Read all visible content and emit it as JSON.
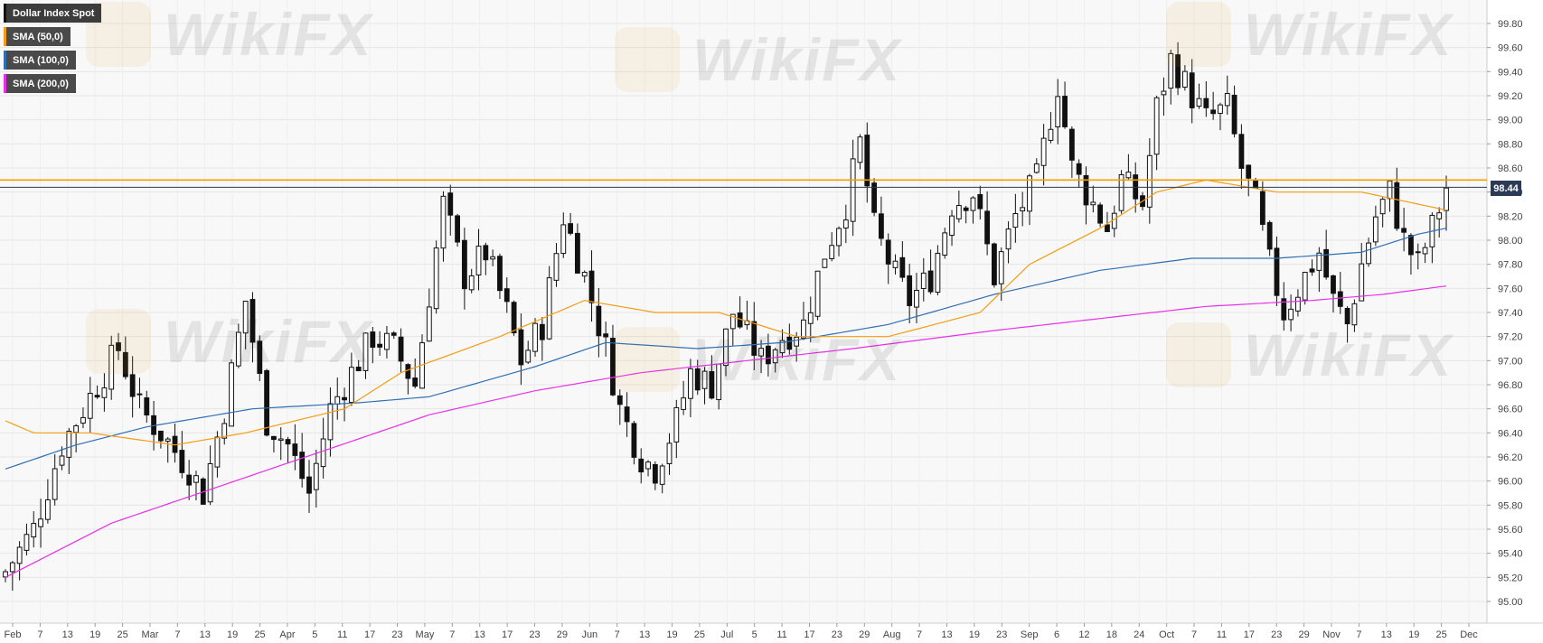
{
  "chart_data": {
    "type": "candlestick",
    "title": "Dollar Index Spot",
    "series": [
      {
        "name": "SMA (50,0)",
        "color": "#f39c12"
      },
      {
        "name": "SMA (100,0)",
        "color": "#2e6eb5"
      },
      {
        "name": "SMA (200,0)",
        "color": "#e830e8"
      }
    ],
    "y_ticks": [
      "99.80",
      "99.60",
      "99.40",
      "99.20",
      "99.00",
      "98.80",
      "98.60",
      "98.40",
      "98.20",
      "98.00",
      "97.80",
      "97.60",
      "97.40",
      "97.20",
      "97.00",
      "96.80",
      "96.60",
      "96.40",
      "96.20",
      "96.00",
      "95.80",
      "95.60",
      "95.40",
      "95.20",
      "95.00"
    ],
    "ylim": [
      94.95,
      99.95
    ],
    "x_ticks": [
      "Feb",
      "7",
      "13",
      "19",
      "25",
      "Mar",
      "7",
      "13",
      "19",
      "25",
      "Apr",
      "5",
      "11",
      "17",
      "23",
      "May",
      "7",
      "13",
      "17",
      "23",
      "29",
      "Jun",
      "7",
      "13",
      "19",
      "25",
      "Jul",
      "5",
      "11",
      "17",
      "23",
      "29",
      "Aug",
      "7",
      "13",
      "19",
      "23",
      "Sep",
      "6",
      "12",
      "18",
      "24",
      "Oct",
      "7",
      "11",
      "17",
      "23",
      "29",
      "Nov",
      "7",
      "13",
      "19",
      "25",
      "Dec"
    ],
    "horizontal_level": 98.5,
    "last_price": "98.44",
    "last_value": 98.44,
    "close_path": [
      [
        0,
        95.25
      ],
      [
        4,
        95.6
      ],
      [
        8,
        96.3
      ],
      [
        12,
        96.7
      ],
      [
        16,
        97.1
      ],
      [
        19,
        96.6
      ],
      [
        22,
        96.4
      ],
      [
        26,
        96.1
      ],
      [
        28,
        95.9
      ],
      [
        31,
        96.6
      ],
      [
        34,
        97.5
      ],
      [
        37,
        96.5
      ],
      [
        40,
        96.3
      ],
      [
        43,
        95.9
      ],
      [
        46,
        96.6
      ],
      [
        49,
        96.9
      ],
      [
        52,
        97.2
      ],
      [
        55,
        97.1
      ],
      [
        58,
        96.8
      ],
      [
        62,
        98.3
      ],
      [
        65,
        97.7
      ],
      [
        68,
        97.9
      ],
      [
        71,
        97.4
      ],
      [
        73,
        97.0
      ],
      [
        76,
        97.3
      ],
      [
        79,
        98.2
      ],
      [
        82,
        97.7
      ],
      [
        85,
        97.1
      ],
      [
        87,
        96.6
      ],
      [
        90,
        96.2
      ],
      [
        92,
        96.1
      ],
      [
        95,
        96.5
      ],
      [
        97,
        96.9
      ],
      [
        100,
        96.8
      ],
      [
        103,
        97.4
      ],
      [
        107,
        97.0
      ],
      [
        110,
        97.2
      ],
      [
        113,
        97.3
      ],
      [
        116,
        97.9
      ],
      [
        119,
        98.3
      ],
      [
        121,
        98.8
      ],
      [
        123,
        98.1
      ],
      [
        126,
        97.7
      ],
      [
        128,
        97.5
      ],
      [
        131,
        97.7
      ],
      [
        134,
        98.3
      ],
      [
        137,
        98.4
      ],
      [
        140,
        97.7
      ],
      [
        143,
        98.2
      ],
      [
        146,
        98.5
      ],
      [
        149,
        99.3
      ],
      [
        151,
        98.6
      ],
      [
        153,
        98.4
      ],
      [
        156,
        98.1
      ],
      [
        158,
        98.5
      ],
      [
        161,
        98.3
      ],
      [
        163,
        99.1
      ],
      [
        165,
        99.5
      ],
      [
        168,
        99.2
      ],
      [
        170,
        99.0
      ],
      [
        173,
        99.1
      ],
      [
        175,
        98.6
      ],
      [
        177,
        98.3
      ],
      [
        179,
        97.8
      ],
      [
        181,
        97.4
      ],
      [
        184,
        97.7
      ],
      [
        186,
        97.9
      ],
      [
        188,
        97.5
      ],
      [
        190,
        97.3
      ],
      [
        192,
        97.8
      ],
      [
        194,
        98.2
      ],
      [
        196,
        98.4
      ],
      [
        198,
        98.0
      ],
      [
        200,
        97.8
      ],
      [
        202,
        98.1
      ],
      [
        204,
        98.44
      ]
    ],
    "sma50": [
      [
        0,
        96.5
      ],
      [
        4,
        96.4
      ],
      [
        12,
        96.4
      ],
      [
        24,
        96.3
      ],
      [
        34,
        96.4
      ],
      [
        48,
        96.6
      ],
      [
        56,
        96.9
      ],
      [
        70,
        97.2
      ],
      [
        82,
        97.5
      ],
      [
        92,
        97.4
      ],
      [
        101,
        97.4
      ],
      [
        112,
        97.2
      ],
      [
        125,
        97.2
      ],
      [
        138,
        97.4
      ],
      [
        145,
        97.8
      ],
      [
        155,
        98.1
      ],
      [
        163,
        98.4
      ],
      [
        170,
        98.5
      ],
      [
        180,
        98.4
      ],
      [
        192,
        98.4
      ],
      [
        200,
        98.3
      ],
      [
        204,
        98.25
      ]
    ],
    "sma100": [
      [
        0,
        96.1
      ],
      [
        10,
        96.3
      ],
      [
        20,
        96.45
      ],
      [
        35,
        96.6
      ],
      [
        50,
        96.65
      ],
      [
        60,
        96.7
      ],
      [
        75,
        96.95
      ],
      [
        85,
        97.15
      ],
      [
        98,
        97.1
      ],
      [
        110,
        97.15
      ],
      [
        125,
        97.3
      ],
      [
        140,
        97.55
      ],
      [
        155,
        97.75
      ],
      [
        168,
        97.85
      ],
      [
        180,
        97.85
      ],
      [
        192,
        97.9
      ],
      [
        200,
        98.05
      ],
      [
        204,
        98.1
      ]
    ],
    "sma200": [
      [
        0,
        95.2
      ],
      [
        15,
        95.65
      ],
      [
        30,
        95.95
      ],
      [
        45,
        96.25
      ],
      [
        60,
        96.55
      ],
      [
        75,
        96.75
      ],
      [
        90,
        96.9
      ],
      [
        105,
        97.0
      ],
      [
        120,
        97.1
      ],
      [
        140,
        97.25
      ],
      [
        155,
        97.35
      ],
      [
        170,
        97.45
      ],
      [
        185,
        97.5
      ],
      [
        195,
        97.55
      ],
      [
        204,
        97.62
      ]
    ]
  }
}
